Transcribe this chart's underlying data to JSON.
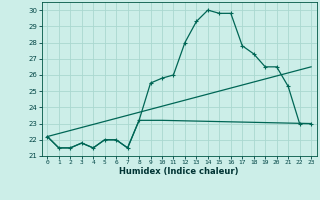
{
  "title": "",
  "xlabel": "Humidex (Indice chaleur)",
  "bg_color": "#cceee8",
  "grid_color": "#aad8d0",
  "line_color": "#006655",
  "xlim": [
    -0.5,
    23.5
  ],
  "ylim": [
    21,
    30.5
  ],
  "xticks": [
    0,
    1,
    2,
    3,
    4,
    5,
    6,
    7,
    8,
    9,
    10,
    11,
    12,
    13,
    14,
    15,
    16,
    17,
    18,
    19,
    20,
    21,
    22,
    23
  ],
  "yticks": [
    21,
    22,
    23,
    24,
    25,
    26,
    27,
    28,
    29,
    30
  ],
  "main_x": [
    0,
    1,
    2,
    3,
    4,
    5,
    6,
    7,
    8,
    9,
    10,
    11,
    12,
    13,
    14,
    15,
    16,
    17,
    18,
    19,
    20,
    21,
    22,
    23
  ],
  "main_y": [
    22.2,
    21.5,
    21.5,
    21.8,
    21.5,
    22.0,
    22.0,
    21.5,
    23.2,
    25.5,
    25.8,
    26.0,
    28.0,
    29.3,
    30.0,
    29.8,
    29.8,
    27.8,
    27.3,
    26.5,
    26.5,
    25.3,
    23.0,
    23.0
  ],
  "line2_x": [
    0,
    1,
    2,
    3,
    4,
    5,
    6,
    7,
    8,
    9,
    10,
    23
  ],
  "line2_y": [
    22.2,
    21.5,
    21.5,
    21.8,
    21.5,
    22.0,
    22.0,
    21.5,
    23.2,
    23.2,
    23.2,
    23.0
  ],
  "line3_x": [
    0,
    23
  ],
  "line3_y": [
    22.2,
    26.5
  ]
}
